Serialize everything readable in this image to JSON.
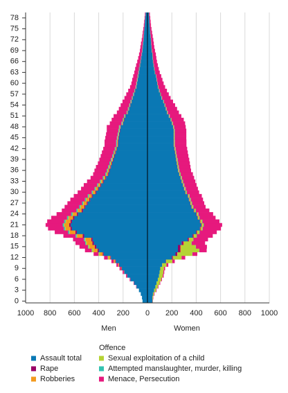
{
  "chart_data": {
    "type": "pyramid",
    "categories": [
      "0",
      null,
      null,
      "3",
      null,
      null,
      "6",
      null,
      null,
      "9",
      null,
      null,
      "12",
      null,
      null,
      "15",
      null,
      null,
      "18",
      null,
      null,
      "21",
      null,
      null,
      "24",
      null,
      null,
      "27",
      null,
      null,
      "30",
      null,
      null,
      "33",
      null,
      null,
      "36",
      null,
      null,
      "39",
      null,
      null,
      "42",
      null,
      null,
      "45",
      null,
      null,
      "48",
      null,
      null,
      "51",
      null,
      null,
      "54",
      null,
      null,
      "57",
      null,
      null,
      "60",
      null,
      null,
      "63",
      null,
      null,
      "66",
      null,
      null,
      "69",
      null,
      null,
      "72",
      null,
      null,
      "75",
      null,
      null,
      "78",
      null
    ],
    "left_label": "Men",
    "right_label": "Women",
    "legend_title": "Offence",
    "xlim": [
      -1000,
      1000
    ],
    "xticks": [
      {
        "value": -1000,
        "label": "1000"
      },
      {
        "value": -800,
        "label": "800"
      },
      {
        "value": -600,
        "label": "600"
      },
      {
        "value": -400,
        "label": "400"
      },
      {
        "value": -200,
        "label": "200"
      },
      0,
      200,
      400,
      600,
      800,
      1000
    ],
    "grid": true,
    "series": [
      {
        "name": "Assault total",
        "color": "#0a78b4",
        "men": [
          40,
          45,
          55,
          70,
          90,
          110,
          140,
          165,
          190,
          210,
          230,
          260,
          300,
          360,
          400,
          420,
          440,
          450,
          520,
          580,
          620,
          630,
          620,
          600,
          570,
          530,
          510,
          490,
          470,
          450,
          420,
          400,
          380,
          360,
          340,
          320,
          310,
          300,
          290,
          280,
          270,
          260,
          250,
          240,
          240,
          235,
          230,
          225,
          220,
          200,
          190,
          180,
          160,
          150,
          140,
          130,
          120,
          110,
          100,
          90,
          85,
          80,
          75,
          70,
          65,
          60,
          55,
          50,
          45,
          40,
          38,
          35,
          32,
          30,
          28,
          25,
          22,
          20,
          18,
          15
        ],
        "women": [
          40,
          40,
          45,
          55,
          65,
          75,
          85,
          95,
          100,
          105,
          120,
          150,
          200,
          230,
          250,
          250,
          280,
          330,
          370,
          400,
          430,
          440,
          430,
          410,
          400,
          380,
          360,
          350,
          340,
          330,
          310,
          300,
          290,
          280,
          270,
          260,
          250,
          245,
          240,
          235,
          230,
          225,
          220,
          215,
          215,
          215,
          215,
          215,
          210,
          200,
          190,
          175,
          160,
          150,
          140,
          130,
          115,
          105,
          95,
          85,
          80,
          75,
          70,
          60,
          55,
          50,
          45,
          42,
          40,
          35,
          32,
          30,
          28,
          25,
          22,
          20,
          18,
          16,
          14,
          12
        ]
      },
      {
        "name": "Rape",
        "color": "#990066",
        "men": [
          0,
          0,
          0,
          0,
          1,
          1,
          1,
          2,
          2,
          3,
          3,
          4,
          5,
          8,
          10,
          12,
          12,
          12,
          12,
          12,
          12,
          12,
          11,
          11,
          10,
          10,
          9,
          9,
          8,
          8,
          8,
          7,
          7,
          7,
          6,
          6,
          6,
          5,
          5,
          5,
          5,
          5,
          4,
          4,
          4,
          4,
          4,
          3,
          3,
          3,
          3,
          3,
          3,
          2,
          2,
          2,
          2,
          2,
          2,
          2,
          1,
          1,
          1,
          1,
          1,
          1,
          1,
          1,
          1,
          1,
          1,
          1,
          1,
          0,
          0,
          0,
          0,
          0,
          0,
          0
        ],
        "women": [
          0,
          0,
          0,
          0,
          0,
          0,
          0,
          0,
          0,
          0,
          1,
          3,
          8,
          15,
          20,
          20,
          15,
          10,
          8,
          6,
          5,
          5,
          4,
          4,
          4,
          3,
          3,
          3,
          3,
          3,
          2,
          2,
          2,
          2,
          2,
          2,
          2,
          2,
          2,
          2,
          2,
          2,
          2,
          2,
          2,
          1,
          1,
          1,
          1,
          1,
          1,
          1,
          1,
          1,
          1,
          0,
          0,
          0,
          0,
          0,
          0,
          0,
          0,
          0,
          0,
          0,
          0,
          0,
          0,
          0,
          0,
          0,
          0,
          0,
          0,
          0,
          0,
          0,
          0,
          0
        ]
      },
      {
        "name": "Robberies",
        "color": "#f39a1e",
        "men": [
          0,
          0,
          0,
          0,
          0,
          0,
          0,
          1,
          2,
          3,
          5,
          8,
          12,
          20,
          30,
          40,
          45,
          45,
          45,
          45,
          40,
          40,
          38,
          35,
          32,
          30,
          28,
          25,
          22,
          20,
          18,
          16,
          14,
          12,
          10,
          9,
          8,
          7,
          6,
          6,
          5,
          5,
          5,
          4,
          4,
          4,
          3,
          3,
          3,
          3,
          3,
          2,
          2,
          2,
          2,
          2,
          1,
          1,
          1,
          1,
          1,
          1,
          1,
          1,
          1,
          1,
          0,
          0,
          0,
          0,
          0,
          0,
          0,
          0,
          0,
          0,
          0,
          0,
          0,
          0
        ],
        "women": [
          0,
          0,
          0,
          0,
          0,
          0,
          0,
          0,
          0,
          0,
          0,
          1,
          2,
          3,
          5,
          6,
          6,
          5,
          5,
          5,
          5,
          5,
          4,
          4,
          4,
          4,
          3,
          3,
          3,
          3,
          3,
          3,
          2,
          2,
          2,
          2,
          2,
          2,
          2,
          2,
          2,
          2,
          2,
          1,
          1,
          1,
          1,
          1,
          1,
          1,
          1,
          1,
          1,
          1,
          1,
          0,
          0,
          0,
          0,
          0,
          0,
          0,
          0,
          0,
          0,
          0,
          0,
          0,
          0,
          0,
          0,
          0,
          0,
          0,
          0,
          0,
          0,
          0,
          0,
          0
        ]
      },
      {
        "name": "Sexual exploitation of a child",
        "color": "#b5d334",
        "men": [
          0,
          0,
          0,
          0,
          0,
          0,
          0,
          0,
          0,
          1,
          2,
          4,
          8,
          12,
          15,
          12,
          8,
          6,
          4,
          4,
          4,
          4,
          4,
          4,
          4,
          4,
          4,
          4,
          4,
          4,
          4,
          4,
          4,
          4,
          4,
          4,
          4,
          4,
          4,
          3,
          3,
          3,
          3,
          3,
          3,
          3,
          3,
          3,
          3,
          3,
          3,
          3,
          2,
          2,
          2,
          2,
          2,
          2,
          2,
          2,
          2,
          2,
          2,
          1,
          1,
          1,
          1,
          1,
          1,
          1,
          1,
          1,
          1,
          1,
          1,
          0,
          0,
          0,
          0,
          0
        ],
        "women": [
          2,
          5,
          8,
          15,
          20,
          25,
          28,
          30,
          30,
          30,
          35,
          50,
          70,
          120,
          150,
          120,
          60,
          30,
          20,
          15,
          10,
          10,
          10,
          8,
          8,
          8,
          8,
          7,
          7,
          7,
          6,
          6,
          6,
          6,
          6,
          6,
          6,
          6,
          6,
          6,
          5,
          5,
          5,
          5,
          5,
          5,
          5,
          5,
          5,
          5,
          4,
          4,
          4,
          4,
          3,
          3,
          3,
          3,
          3,
          3,
          2,
          2,
          2,
          2,
          2,
          2,
          2,
          2,
          2,
          2,
          1,
          1,
          1,
          1,
          1,
          1,
          1,
          1,
          1,
          1
        ]
      },
      {
        "name": "Attempted manslaughter, murder, killing",
        "color": "#33c2b0",
        "men": [
          1,
          0,
          0,
          0,
          0,
          0,
          0,
          0,
          0,
          0,
          0,
          0,
          1,
          2,
          3,
          4,
          6,
          8,
          9,
          10,
          10,
          10,
          10,
          10,
          10,
          9,
          9,
          9,
          9,
          8,
          8,
          8,
          8,
          8,
          7,
          7,
          7,
          7,
          7,
          6,
          6,
          6,
          6,
          6,
          6,
          5,
          5,
          5,
          5,
          5,
          5,
          5,
          4,
          4,
          4,
          4,
          4,
          4,
          3,
          3,
          3,
          3,
          3,
          3,
          3,
          2,
          2,
          2,
          2,
          2,
          2,
          2,
          1,
          1,
          1,
          1,
          1,
          1,
          1,
          1
        ],
        "women": [
          1,
          0,
          0,
          0,
          0,
          0,
          0,
          0,
          0,
          0,
          0,
          0,
          0,
          1,
          1,
          2,
          2,
          2,
          3,
          3,
          3,
          3,
          3,
          3,
          3,
          3,
          3,
          3,
          3,
          3,
          3,
          3,
          3,
          3,
          3,
          3,
          3,
          3,
          3,
          3,
          2,
          2,
          2,
          2,
          2,
          2,
          2,
          2,
          2,
          2,
          2,
          2,
          2,
          2,
          2,
          2,
          2,
          2,
          2,
          2,
          1,
          1,
          1,
          1,
          1,
          1,
          1,
          1,
          1,
          1,
          1,
          1,
          1,
          1,
          1,
          0,
          0,
          0,
          0,
          0
        ]
      },
      {
        "name": "Menace, Persecution",
        "color": "#e6197d",
        "men": [
          0,
          0,
          0,
          0,
          2,
          3,
          5,
          8,
          10,
          12,
          15,
          20,
          30,
          40,
          55,
          70,
          80,
          90,
          100,
          110,
          130,
          140,
          140,
          130,
          120,
          120,
          120,
          120,
          120,
          115,
          115,
          110,
          110,
          105,
          100,
          100,
          100,
          100,
          95,
          95,
          95,
          95,
          95,
          95,
          95,
          95,
          95,
          95,
          100,
          95,
          90,
          85,
          80,
          75,
          70,
          65,
          60,
          55,
          50,
          45,
          40,
          38,
          35,
          32,
          30,
          28,
          25,
          22,
          20,
          18,
          16,
          14,
          12,
          10,
          9,
          8,
          7,
          6,
          5,
          5
        ],
        "women": [
          2,
          3,
          5,
          5,
          5,
          5,
          6,
          8,
          8,
          10,
          15,
          20,
          30,
          40,
          60,
          90,
          110,
          120,
          130,
          140,
          150,
          150,
          140,
          130,
          120,
          110,
          100,
          100,
          100,
          100,
          100,
          100,
          100,
          100,
          100,
          100,
          95,
          95,
          95,
          95,
          95,
          95,
          95,
          95,
          95,
          95,
          95,
          95,
          95,
          100,
          100,
          95,
          90,
          85,
          80,
          75,
          70,
          65,
          60,
          55,
          50,
          45,
          40,
          38,
          35,
          32,
          30,
          28,
          26,
          24,
          22,
          20,
          18,
          16,
          14,
          12,
          10,
          9,
          8,
          7
        ]
      }
    ]
  }
}
